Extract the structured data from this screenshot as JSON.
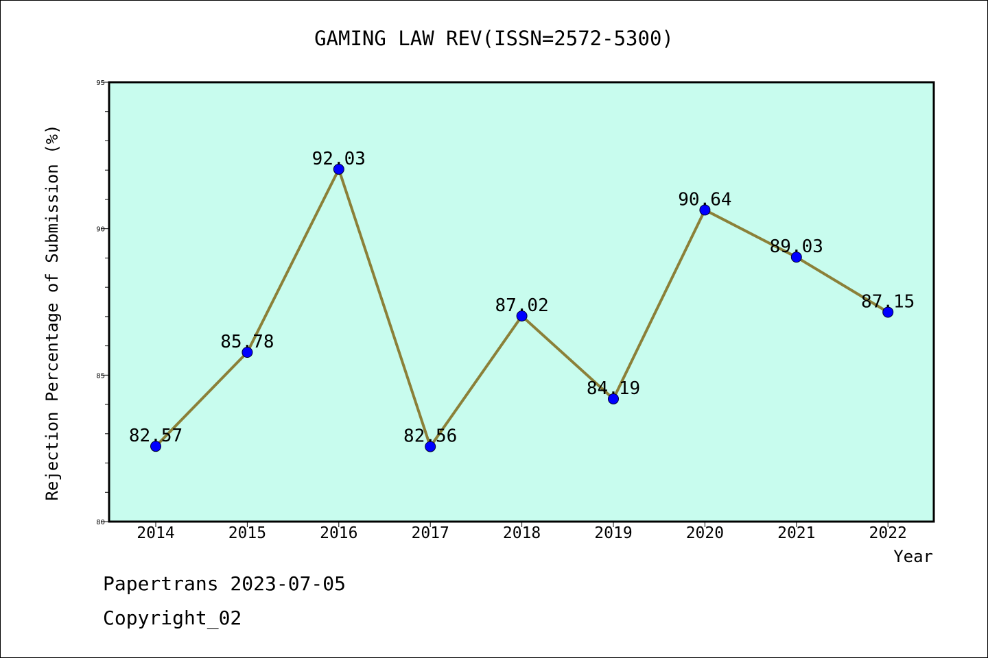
{
  "chart_data": {
    "type": "line",
    "title": "GAMING LAW REV(ISSN=2572-5300)",
    "xlabel": "Year",
    "ylabel": "Rejection Percentage of Submission (%)",
    "categories": [
      "2014",
      "2015",
      "2016",
      "2017",
      "2018",
      "2019",
      "2020",
      "2021",
      "2022"
    ],
    "series": [
      {
        "values": [
          82.57,
          85.78,
          92.03,
          82.56,
          87.02,
          84.19,
          90.64,
          89.03,
          87.15
        ],
        "labels": [
          "82.57",
          "85.78",
          "92.03",
          "82.56",
          "87.02",
          "84.19",
          "90.64",
          "89.03",
          "87.15"
        ]
      }
    ],
    "ylim": [
      80,
      95
    ],
    "yticks": [
      "80",
      "85",
      "90",
      "95"
    ],
    "grid": false,
    "colors": {
      "plot_background": "#c8fcee",
      "line": "#8b8038",
      "marker": "#0000ff"
    }
  },
  "footer": {
    "line1": "Papertrans 2023-07-05",
    "line2": "Copyright_02"
  }
}
